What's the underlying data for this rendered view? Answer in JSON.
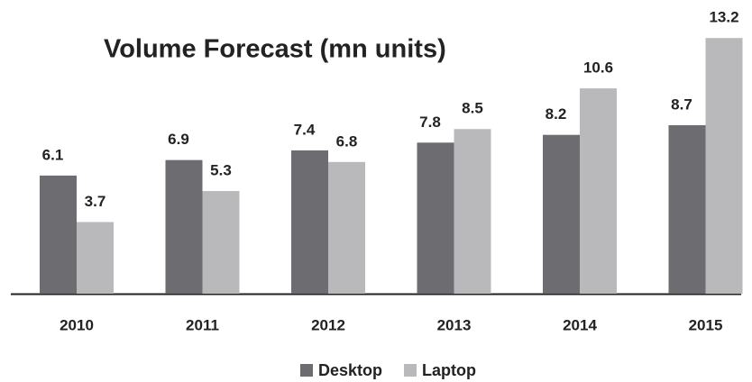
{
  "chart_data": {
    "type": "bar",
    "title": "Volume Forecast (mn units)",
    "categories": [
      "2010",
      "2011",
      "2012",
      "2013",
      "2014",
      "2015"
    ],
    "series": [
      {
        "name": "Desktop",
        "color": "#6d6d71",
        "values": [
          6.1,
          6.9,
          7.4,
          7.8,
          8.2,
          8.7
        ]
      },
      {
        "name": "Laptop",
        "color": "#b9b9bb",
        "values": [
          3.7,
          5.3,
          6.8,
          8.5,
          10.6,
          13.2
        ]
      }
    ],
    "ylim": [
      0,
      15
    ],
    "legend": "bottom"
  }
}
